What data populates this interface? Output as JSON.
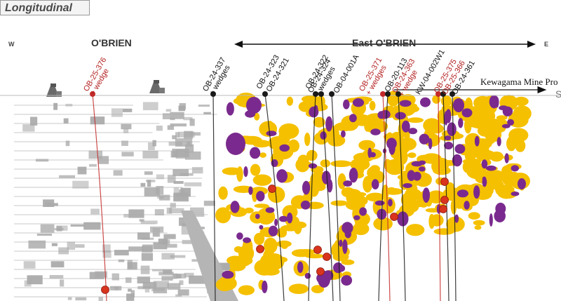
{
  "title": "Longitudinal",
  "compass": {
    "west": "W",
    "east": "E"
  },
  "zones": {
    "obrien": "O'BRIEN",
    "east_obrien": "East O'BRIEN"
  },
  "mine_label": "Kewagama Mine Pro",
  "s_label": "S",
  "colors": {
    "gold": "#f5c000",
    "purple": "#7a2a8e",
    "gray": "#a9a9a9",
    "red_hole": "#c42a2a",
    "black_hole": "#1a1a1a",
    "intercept": "#d9341d"
  },
  "holes": [
    {
      "id": "ob-25-376",
      "label": "OB-25-376",
      "sub": "+ wedge",
      "color": "red"
    },
    {
      "id": "ob-24-337",
      "label": "OB-24-337",
      "sub": "+ wedges",
      "color": "black"
    },
    {
      "id": "ob-24-323",
      "label": "OB-24-323",
      "sub": "",
      "color": "black"
    },
    {
      "id": "ob-24-321",
      "label": "OB-24-321",
      "sub": "",
      "color": "black"
    },
    {
      "id": "ob-24-322",
      "label": "OB-24-322",
      "sub": "",
      "color": "black"
    },
    {
      "id": "ob-24-324",
      "label": "OB-24-324",
      "sub": "+ wedges",
      "color": "black"
    },
    {
      "id": "ob-04-001a",
      "label": "OB-04-001A",
      "sub": "",
      "color": "black"
    },
    {
      "id": "ob-25-371",
      "label": "OB-25-371",
      "sub": "+ wedges",
      "color": "red"
    },
    {
      "id": "ob-20-113",
      "label": "OB-20-113",
      "sub": "",
      "color": "black"
    },
    {
      "id": "ob-24-363",
      "label": "OB-24-363",
      "sub": "+ wedge",
      "color": "red"
    },
    {
      "id": "kw-04-002w1",
      "label": "KW-04-002W1",
      "sub": "",
      "color": "black"
    },
    {
      "id": "ob-25-375",
      "label": "OB-25-375",
      "sub": "",
      "color": "red"
    },
    {
      "id": "ob-25-366",
      "label": "OB-25-366",
      "sub": "",
      "color": "red"
    },
    {
      "id": "ob-24-361",
      "label": "OB-24-361",
      "sub": "",
      "color": "black"
    }
  ]
}
